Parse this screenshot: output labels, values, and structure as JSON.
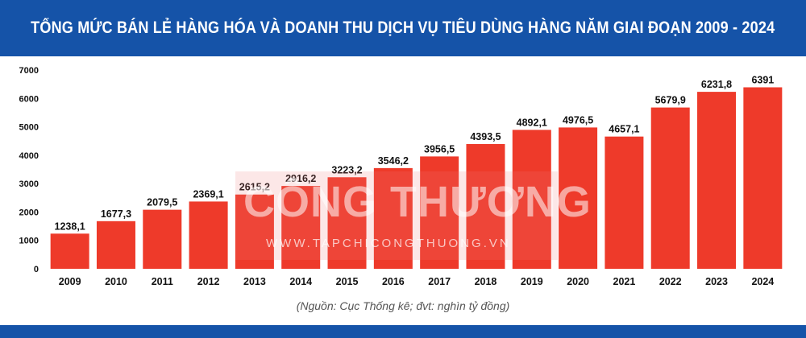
{
  "header": {
    "title": "TỔNG MỨC BÁN LẺ HÀNG HÓA VÀ DOANH THU DỊCH VỤ TIÊU DÙNG HÀNG NĂM GIAI ĐOẠN 2009 - 2024"
  },
  "watermark": {
    "text": "CÔNG THƯƠNG",
    "sub": "WWW.TAPCHICONGTHUONG.VN"
  },
  "source_note": "(Nguồn: Cục Thống kê; đvt: nghìn tỷ đồng)",
  "colors": {
    "banner": "#1553a8",
    "bar": "#ee3a2a"
  },
  "chart_data": {
    "type": "bar",
    "title": "TỔNG MỨC BÁN LẺ HÀNG HÓA VÀ DOANH THU DỊCH VỤ TIÊU DÙNG HÀNG NĂM GIAI ĐOẠN 2009 - 2024",
    "categories": [
      "2009",
      "2010",
      "2011",
      "2012",
      "2013",
      "2014",
      "2015",
      "2016",
      "2017",
      "2018",
      "2019",
      "2020",
      "2021",
      "2022",
      "2023",
      "2024"
    ],
    "values": [
      1238.1,
      1677.3,
      2079.5,
      2369.1,
      2615.2,
      2916.2,
      3223.2,
      3546.2,
      3956.5,
      4393.5,
      4892.1,
      4976.5,
      4657.1,
      5679.9,
      6231.8,
      6391
    ],
    "value_labels": [
      "1238,1",
      "1677,3",
      "2079,5",
      "2369,1",
      "2615,2",
      "2916,2",
      "3223,2",
      "3546,2",
      "3956,5",
      "4393,5",
      "4892,1",
      "4976,5",
      "4657,1",
      "5679,9",
      "6231,8",
      "6391"
    ],
    "yticks": [
      "0",
      "1000",
      "2000",
      "3000",
      "4000",
      "5000",
      "6000",
      "7000"
    ],
    "ylim": [
      0,
      7000
    ],
    "xlabel": "",
    "ylabel": "",
    "grid": false,
    "legend": "none"
  }
}
